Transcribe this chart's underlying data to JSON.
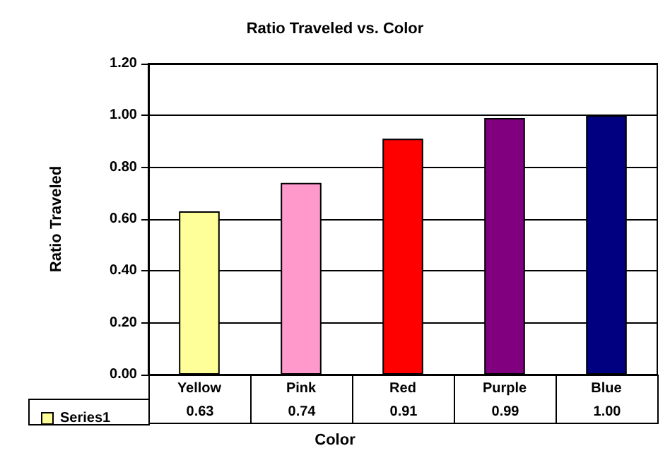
{
  "chart_data": {
    "type": "bar",
    "title": "Ratio Traveled vs. Color",
    "xlabel": "Color",
    "ylabel": "Ratio Traveled",
    "categories": [
      "Yellow",
      "Pink",
      "Red",
      "Purple",
      "Blue"
    ],
    "series": [
      {
        "name": "Series1",
        "color": "#ffff99",
        "colors": [
          "#ffff99",
          "#ff99cc",
          "#ff0000",
          "#800080",
          "#000080"
        ],
        "values": [
          0.63,
          0.74,
          0.91,
          0.99,
          1.0
        ],
        "value_labels": [
          "0.63",
          "0.74",
          "0.91",
          "0.99",
          "1.00"
        ]
      }
    ],
    "ylim": [
      0,
      1.2
    ],
    "yticks": [
      {
        "value": 0,
        "label": "0.00"
      },
      {
        "value": 0.2,
        "label": "0.20"
      },
      {
        "value": 0.4,
        "label": "0.40"
      },
      {
        "value": 0.6,
        "label": "0.60"
      },
      {
        "value": 0.8,
        "label": "0.80"
      },
      {
        "value": 1.0,
        "label": "1.00"
      },
      {
        "value": 1.2,
        "label": "1.20"
      }
    ],
    "grid": "y",
    "legend": "bottom left"
  }
}
